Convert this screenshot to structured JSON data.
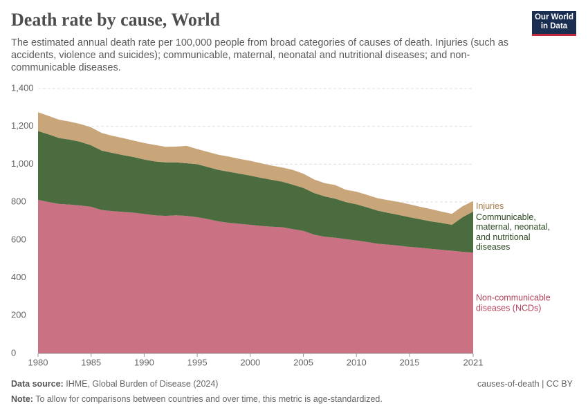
{
  "chart_data": {
    "type": "stacked-area",
    "title": "Death rate by cause, World",
    "subtitle": "The estimated annual death rate per 100,000 people from broad categories of causes of death. Injuries (such as accidents, violence and suicides); communicable, maternal, neonatal and nutritional diseases; and non-communicable diseases.",
    "logo": "Our World in Data",
    "x": [
      1980,
      1981,
      1982,
      1983,
      1984,
      1985,
      1986,
      1987,
      1988,
      1989,
      1990,
      1991,
      1992,
      1993,
      1994,
      1995,
      1996,
      1997,
      1998,
      1999,
      2000,
      2001,
      2002,
      2003,
      2004,
      2005,
      2006,
      2007,
      2008,
      2009,
      2010,
      2011,
      2012,
      2013,
      2014,
      2015,
      2016,
      2017,
      2018,
      2019,
      2020,
      2021
    ],
    "series": [
      {
        "name": "Non-communicable diseases (NCDs)",
        "color": "#ca7283",
        "label_color": "#b5405a",
        "values": [
          812,
          800,
          790,
          787,
          782,
          775,
          758,
          752,
          748,
          744,
          737,
          730,
          727,
          730,
          727,
          720,
          710,
          698,
          690,
          685,
          680,
          674,
          670,
          667,
          657,
          648,
          628,
          617,
          612,
          604,
          597,
          589,
          580,
          575,
          570,
          563,
          559,
          553,
          548,
          543,
          537,
          533
        ]
      },
      {
        "name": "Communicable, maternal, neonatal, and nutritional diseases",
        "color": "#4a6c3f",
        "label_color": "#2d4a22",
        "values": [
          363,
          358,
          348,
          343,
          336,
          325,
          314,
          308,
          300,
          294,
          288,
          285,
          283,
          280,
          278,
          280,
          275,
          272,
          270,
          265,
          260,
          254,
          248,
          241,
          235,
          227,
          220,
          213,
          206,
          196,
          191,
          183,
          175,
          168,
          162,
          157,
          150,
          145,
          142,
          137,
          183,
          217
        ]
      },
      {
        "name": "Injuries",
        "color": "#c9a57a",
        "label_color": "#a97c47",
        "values": [
          100,
          97,
          97,
          95,
          94,
          95,
          93,
          90,
          90,
          87,
          87,
          87,
          82,
          83,
          92,
          80,
          80,
          80,
          80,
          78,
          78,
          77,
          75,
          75,
          78,
          75,
          72,
          70,
          72,
          65,
          67,
          66,
          65,
          67,
          68,
          68,
          66,
          65,
          60,
          58,
          58,
          55
        ]
      }
    ],
    "xlim": [
      1980,
      2021
    ],
    "xticks": [
      1980,
      1985,
      1990,
      1995,
      2000,
      2005,
      2010,
      2015,
      2021
    ],
    "ylim": [
      0,
      1400
    ],
    "yticks": [
      0,
      200,
      400,
      600,
      800,
      {
        "value": 1000,
        "label": "1,000"
      },
      {
        "value": 1200,
        "label": "1,200"
      },
      {
        "value": 1400,
        "label": "1,400"
      }
    ],
    "grid": true,
    "source_label": "Data source:",
    "source": "IHME, Global Burden of Disease (2024)",
    "license": "causes-of-death | CC BY",
    "note_label": "Note:",
    "note": "To allow for comparisons between countries and over time, this metric is age-standardized."
  }
}
